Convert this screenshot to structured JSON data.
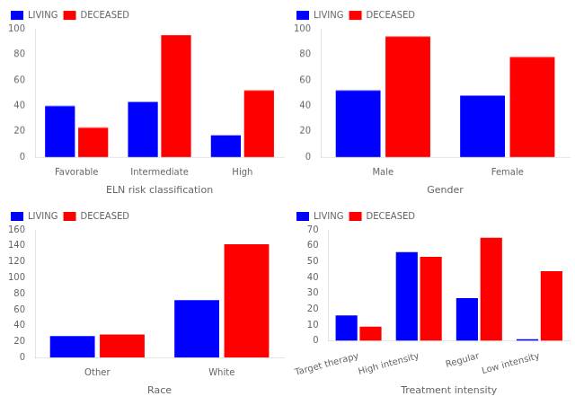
{
  "chart_data": [
    {
      "type": "bar",
      "xlabel": "ELN risk classification",
      "categories": [
        "Favorable",
        "Intermediate",
        "High"
      ],
      "series": [
        {
          "name": "LIVING",
          "color": "#0000ff",
          "values": [
            40,
            43,
            17
          ]
        },
        {
          "name": "DECEASED",
          "color": "#ff0000",
          "values": [
            23,
            95,
            52
          ]
        }
      ],
      "ylim": [
        0,
        100
      ],
      "yticks": [
        0,
        20,
        40,
        60,
        80,
        100
      ],
      "grid": false,
      "legend": "upper left"
    },
    {
      "type": "bar",
      "xlabel": "Gender",
      "categories": [
        "Male",
        "Female"
      ],
      "series": [
        {
          "name": "LIVING",
          "color": "#0000ff",
          "values": [
            52,
            48
          ]
        },
        {
          "name": "DECEASED",
          "color": "#ff0000",
          "values": [
            94,
            78
          ]
        }
      ],
      "ylim": [
        0,
        100
      ],
      "yticks": [
        0,
        20,
        40,
        60,
        80,
        100
      ],
      "grid": false,
      "legend": "upper left"
    },
    {
      "type": "bar",
      "xlabel": "Race",
      "categories": [
        "Other",
        "White"
      ],
      "series": [
        {
          "name": "LIVING",
          "color": "#0000ff",
          "values": [
            27,
            72
          ]
        },
        {
          "name": "DECEASED",
          "color": "#ff0000",
          "values": [
            29,
            142
          ]
        }
      ],
      "ylim": [
        0,
        160
      ],
      "yticks": [
        0,
        20,
        40,
        60,
        80,
        100,
        120,
        140,
        160
      ],
      "grid": false,
      "legend": "upper left"
    },
    {
      "type": "bar",
      "xlabel": "Treatment intensity",
      "categories": [
        "Target therapy",
        "High intensity",
        "Regular",
        "Low intensity"
      ],
      "series": [
        {
          "name": "LIVING",
          "color": "#0000ff",
          "values": [
            16,
            56,
            27,
            1
          ]
        },
        {
          "name": "DECEASED",
          "color": "#ff0000",
          "values": [
            9,
            53,
            65,
            44
          ]
        }
      ],
      "ylim": [
        0,
        70
      ],
      "yticks": [
        0,
        10,
        20,
        30,
        40,
        50,
        60,
        70
      ],
      "grid": false,
      "legend": "upper left"
    }
  ]
}
